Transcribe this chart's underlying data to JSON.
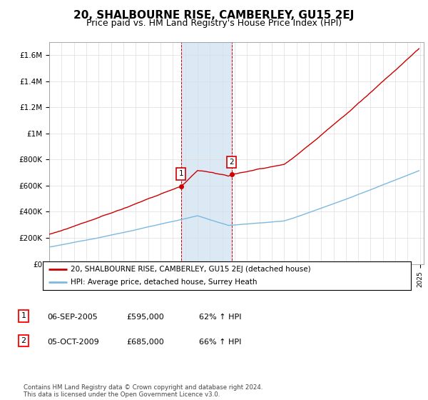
{
  "title": "20, SHALBOURNE RISE, CAMBERLEY, GU15 2EJ",
  "subtitle": "Price paid vs. HM Land Registry's House Price Index (HPI)",
  "title_fontsize": 11,
  "subtitle_fontsize": 9,
  "ylim": [
    0,
    1700000
  ],
  "yticks": [
    0,
    200000,
    400000,
    600000,
    800000,
    1000000,
    1200000,
    1400000,
    1600000
  ],
  "ytick_labels": [
    "£0",
    "£200K",
    "£400K",
    "£600K",
    "£800K",
    "£1M",
    "£1.2M",
    "£1.4M",
    "£1.6M"
  ],
  "start_year": 1995,
  "end_year": 2025,
  "hpi_color": "#7cb9e0",
  "price_color": "#cc0000",
  "sale1_year": 2005.67,
  "sale1_price": 595000,
  "sale2_year": 2009.75,
  "sale2_price": 685000,
  "sale1_label": "1",
  "sale2_label": "2",
  "shade_color": "#cce0f0",
  "vline_color": "#cc0000",
  "legend_line1": "20, SHALBOURNE RISE, CAMBERLEY, GU15 2EJ (detached house)",
  "legend_line2": "HPI: Average price, detached house, Surrey Heath",
  "table_row1": [
    "1",
    "06-SEP-2005",
    "£595,000",
    "62% ↑ HPI"
  ],
  "table_row2": [
    "2",
    "05-OCT-2009",
    "£685,000",
    "66% ↑ HPI"
  ],
  "footnote": "Contains HM Land Registry data © Crown copyright and database right 2024.\nThis data is licensed under the Open Government Licence v3.0.",
  "background_color": "#ffffff",
  "grid_color": "#dddddd"
}
